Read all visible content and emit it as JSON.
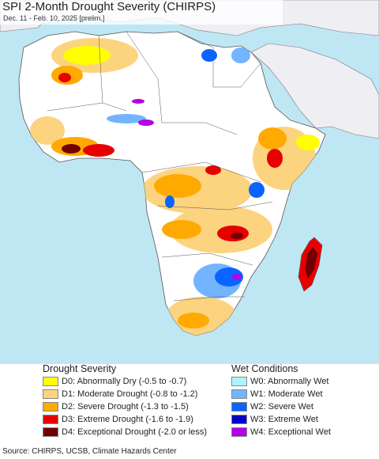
{
  "title": "SPI 2-Month Drought Severity (CHIRPS)",
  "subtitle": "Dec. 11 - Feb. 10, 2025 [prelim.]",
  "colors": {
    "ocean": "#bfe7f3",
    "non_african_land": "#efeef3",
    "neutral_land": "#ffffff"
  },
  "legend": {
    "drought": {
      "heading": "Drought Severity",
      "items": [
        {
          "label": "D0: Abnormally Dry (-0.5 to -0.7)",
          "color": "#ffff00"
        },
        {
          "label": "D1: Moderate Drought (-0.8 to -1.2)",
          "color": "#fcd37f"
        },
        {
          "label": "D2: Severe Drought (-1.3 to -1.5)",
          "color": "#ffaa00"
        },
        {
          "label": "D3: Extreme Drought (-1.6 to -1.9)",
          "color": "#e60000"
        },
        {
          "label": "D4: Exceptional Drought (-2.0 or less)",
          "color": "#730000"
        }
      ]
    },
    "wet": {
      "heading": "Wet Conditions",
      "items": [
        {
          "label": "W0: Abnormally Wet",
          "color": "#aaf5ff"
        },
        {
          "label": "W1: Moderate Wet",
          "color": "#73b4ff"
        },
        {
          "label": "W2: Severe Wet",
          "color": "#0a64ff"
        },
        {
          "label": "W3: Extreme Wet",
          "color": "#0000c8"
        },
        {
          "label": "W4: Exceptional Wet",
          "color": "#b400e6"
        }
      ]
    }
  },
  "source": "Source: CHIRPS, UCSB, Climate Hazards Center"
}
